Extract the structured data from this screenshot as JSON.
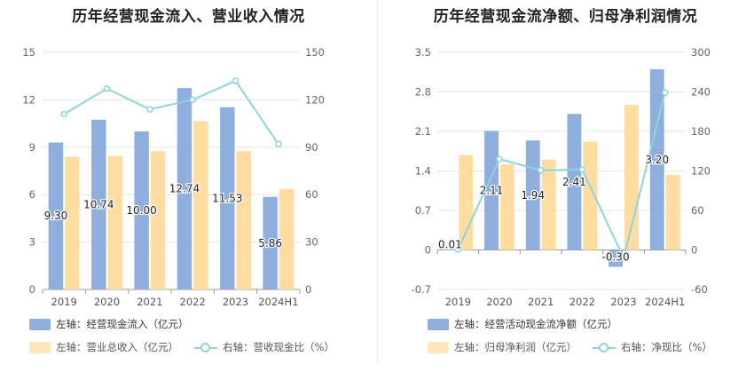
{
  "chart_data": [
    {
      "type": "bar",
      "title": "历年经营现金流入、营业收入情况",
      "categories": [
        "2019",
        "2020",
        "2021",
        "2022",
        "2023",
        "2024H1"
      ],
      "left_axis": {
        "ylim": [
          0,
          15
        ],
        "ticks": [
          "0",
          "3",
          "6",
          "9",
          "12",
          "15"
        ]
      },
      "right_axis": {
        "ylim": [
          0,
          150
        ],
        "ticks": [
          "0",
          "30",
          "60",
          "90",
          "120",
          "150"
        ]
      },
      "series": [
        {
          "name": "左轴：经营现金流入（亿元）",
          "kind": "bar",
          "axis": "left",
          "color": "#8eaedd",
          "values": [
            9.3,
            10.74,
            10.0,
            12.74,
            11.53,
            5.86
          ],
          "labels": [
            "9.30",
            "10.74",
            "10.00",
            "12.74",
            "11.53",
            "5.86"
          ]
        },
        {
          "name": "左轴：营业总收入（亿元）",
          "kind": "bar",
          "axis": "left",
          "color": "#ffdca0",
          "values": [
            8.4,
            8.45,
            8.75,
            10.65,
            8.75,
            6.35
          ]
        },
        {
          "name": "右轴：营收现金比（%）",
          "kind": "line",
          "axis": "right",
          "color": "#8dd5d9",
          "values": [
            111,
            127,
            114,
            120,
            132,
            92
          ]
        }
      ],
      "legend": [
        "左轴：经营现金流入（亿元）",
        "左轴：营业总收入（亿元）",
        "右轴：营收现金比（%）"
      ],
      "legend_placement": "bottom-left",
      "grid": true
    },
    {
      "type": "bar",
      "title": "历年经营现金流净额、归母净利润情况",
      "categories": [
        "2019",
        "2020",
        "2021",
        "2022",
        "2023",
        "2024H1"
      ],
      "left_axis": {
        "ylim": [
          -0.7,
          3.5
        ],
        "ticks": [
          "-0.7",
          "0",
          "0.7",
          "1.4",
          "2.1",
          "2.8",
          "3.5"
        ]
      },
      "right_axis": {
        "ylim": [
          -60,
          300
        ],
        "ticks": [
          "-60",
          "0",
          "60",
          "120",
          "180",
          "240",
          "300"
        ]
      },
      "series": [
        {
          "name": "左轴：经营活动现金流净额（亿元）",
          "kind": "bar",
          "axis": "left",
          "color": "#8eaedd",
          "values": [
            0.01,
            2.11,
            1.94,
            2.41,
            -0.3,
            3.2
          ],
          "labels": [
            "0.01",
            "2.11",
            "1.94",
            "2.41",
            "-0.30",
            "3.20"
          ]
        },
        {
          "name": "左轴：归母净利润（亿元）",
          "kind": "bar",
          "axis": "left",
          "color": "#ffdca0",
          "values": [
            1.68,
            1.52,
            1.6,
            1.92,
            2.57,
            1.33
          ]
        },
        {
          "name": "右轴：净现比（%）",
          "kind": "line",
          "axis": "right",
          "color": "#8dd5d9",
          "values": [
            1,
            138,
            121,
            122,
            -12,
            239
          ]
        }
      ],
      "legend": [
        "左轴：经营活动现金流净额（亿元）",
        "左轴：归母净利润（亿元）",
        "右轴：净现比（%）"
      ],
      "legend_placement": "bottom-left",
      "grid": true
    }
  ]
}
